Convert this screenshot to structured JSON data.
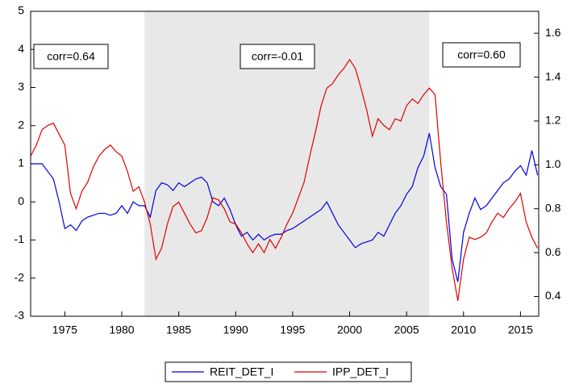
{
  "chart_data": {
    "type": "line",
    "x": [
      1972,
      1972.5,
      1973,
      1973.5,
      1974,
      1974.5,
      1975,
      1975.5,
      1976,
      1976.5,
      1977,
      1977.5,
      1978,
      1978.5,
      1979,
      1979.5,
      1980,
      1980.5,
      1981,
      1981.5,
      1982,
      1982.5,
      1983,
      1983.5,
      1984,
      1984.5,
      1985,
      1985.5,
      1986,
      1986.5,
      1987,
      1987.5,
      1988,
      1988.5,
      1989,
      1989.5,
      1990,
      1990.5,
      1991,
      1991.5,
      1992,
      1992.5,
      1993,
      1993.5,
      1994,
      1994.5,
      1995,
      1995.5,
      1996,
      1996.5,
      1997,
      1997.5,
      1998,
      1998.5,
      1999,
      1999.5,
      2000,
      2000.5,
      2001,
      2001.5,
      2002,
      2002.5,
      2003,
      2003.5,
      2004,
      2004.5,
      2005,
      2005.5,
      2006,
      2006.5,
      2007,
      2007.5,
      2008,
      2008.5,
      2009,
      2009.5,
      2010,
      2010.5,
      2011,
      2011.5,
      2012,
      2012.5,
      2013,
      2013.5,
      2014,
      2014.5,
      2015,
      2015.5,
      2016,
      2016.5
    ],
    "series": [
      {
        "name": "REIT_DET_I",
        "color": "#0000dd",
        "values": [
          1.0,
          1.0,
          1.0,
          0.8,
          0.6,
          0.0,
          -0.7,
          -0.6,
          -0.75,
          -0.5,
          -0.4,
          -0.35,
          -0.3,
          -0.3,
          -0.35,
          -0.3,
          -0.1,
          -0.3,
          0.0,
          -0.1,
          -0.1,
          -0.4,
          0.3,
          0.5,
          0.45,
          0.3,
          0.5,
          0.4,
          0.5,
          0.6,
          0.65,
          0.5,
          0.0,
          -0.1,
          0.1,
          -0.2,
          -0.6,
          -0.9,
          -0.8,
          -1.0,
          -0.85,
          -1.0,
          -0.9,
          -0.85,
          -0.85,
          -0.75,
          -0.7,
          -0.6,
          -0.5,
          -0.4,
          -0.3,
          -0.2,
          0.0,
          -0.3,
          -0.6,
          -0.8,
          -1.0,
          -1.2,
          -1.1,
          -1.05,
          -1.0,
          -0.8,
          -0.9,
          -0.6,
          -0.3,
          -0.1,
          0.2,
          0.4,
          0.9,
          1.2,
          1.8,
          0.9,
          0.4,
          0.2,
          -1.5,
          -2.1,
          -0.8,
          -0.3,
          0.1,
          -0.2,
          -0.1,
          0.1,
          0.3,
          0.5,
          0.6,
          0.8,
          0.95,
          0.7,
          1.35,
          0.7
        ]
      },
      {
        "name": "IPP_DET_I",
        "color": "#e00000",
        "axis": "y2",
        "values": [
          1.04,
          1.09,
          1.16,
          1.18,
          1.19,
          1.14,
          1.09,
          0.87,
          0.8,
          0.88,
          0.92,
          0.99,
          1.04,
          1.07,
          1.09,
          1.06,
          1.04,
          0.97,
          0.88,
          0.9,
          0.83,
          0.73,
          0.57,
          0.62,
          0.73,
          0.81,
          0.83,
          0.78,
          0.73,
          0.69,
          0.7,
          0.76,
          0.85,
          0.84,
          0.8,
          0.74,
          0.73,
          0.69,
          0.64,
          0.6,
          0.64,
          0.6,
          0.66,
          0.62,
          0.67,
          0.73,
          0.78,
          0.85,
          0.92,
          1.04,
          1.15,
          1.27,
          1.35,
          1.37,
          1.41,
          1.44,
          1.48,
          1.44,
          1.35,
          1.25,
          1.13,
          1.21,
          1.18,
          1.16,
          1.21,
          1.2,
          1.27,
          1.3,
          1.28,
          1.32,
          1.35,
          1.32,
          1.01,
          0.74,
          0.53,
          0.38,
          0.57,
          0.67,
          0.66,
          0.67,
          0.69,
          0.74,
          0.78,
          0.76,
          0.8,
          0.83,
          0.87,
          0.74,
          0.67,
          0.62
        ]
      }
    ],
    "xlim": [
      1972,
      2016.6
    ],
    "xticks": [
      1975,
      1980,
      1985,
      1990,
      1995,
      2000,
      2005,
      2010,
      2015
    ],
    "ylim": [
      -3,
      5
    ],
    "yticks": [
      -3,
      -2,
      -1,
      0,
      1,
      2,
      3,
      4,
      5
    ],
    "y2lim": [
      0.31,
      1.7
    ],
    "y2ticks": [
      0.4,
      0.6,
      0.8,
      {
        "value": 1,
        "label": "1.0"
      },
      1.2,
      1.4,
      1.6
    ],
    "shade": [
      1982,
      2007
    ],
    "annotations": [
      "corr=0.64",
      "corr=-0.01",
      "corr=0.60"
    ],
    "grid": false,
    "legend": "bottom"
  }
}
